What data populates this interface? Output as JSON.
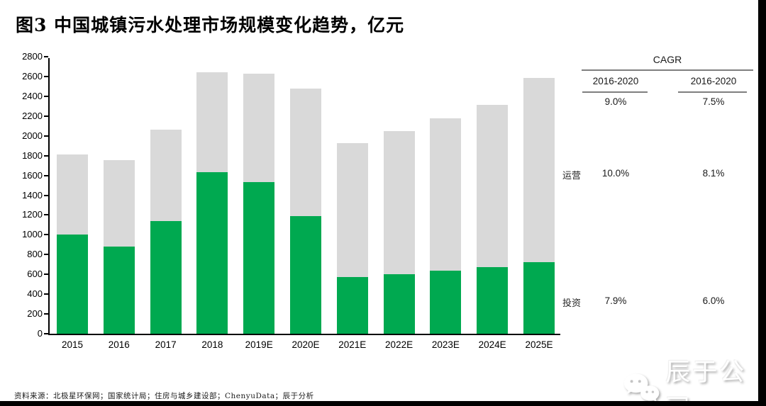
{
  "title": "图3 中国城镇污水处理市场规模变化趋势，亿元",
  "chart_data": {
    "type": "bar",
    "stacked": true,
    "title": "中国城镇污水处理市场规模变化趋势，亿元",
    "xlabel": "",
    "ylabel": "亿元",
    "ylim": [
      0,
      2800
    ],
    "y_ticks": [
      0,
      200,
      400,
      600,
      800,
      1000,
      1200,
      1400,
      1600,
      1800,
      2000,
      2200,
      2400,
      2600,
      2800
    ],
    "grid": false,
    "legend_position": "none",
    "categories": [
      "2015",
      "2016",
      "2017",
      "2018",
      "2019E",
      "2020E",
      "2021E",
      "2022E",
      "2023E",
      "2024E",
      "2025E"
    ],
    "series": [
      {
        "name": "投资",
        "color": "#00A950",
        "values": [
          1000,
          880,
          1140,
          1630,
          1535,
          1190,
          570,
          600,
          640,
          675,
          720
        ]
      },
      {
        "name": "运营",
        "color": "#D9D9D9",
        "values": [
          810,
          875,
          925,
          1010,
          1095,
          1285,
          1360,
          1450,
          1535,
          1635,
          1865
        ]
      }
    ],
    "totals": [
      1810,
      1755,
      2065,
      2640,
      2630,
      2475,
      1930,
      2050,
      2175,
      2310,
      2585
    ]
  },
  "cagr_table": {
    "title": "CAGR",
    "columns": [
      "2016-2020",
      "2016-2020"
    ],
    "total_values": [
      "9.0%",
      "7.5%"
    ],
    "rows": [
      {
        "label": "运营",
        "values": [
          "10.0%",
          "8.1%"
        ]
      },
      {
        "label": "投资",
        "values": [
          "7.9%",
          "6.0%"
        ]
      }
    ]
  },
  "footer": {
    "source": "资料来源：北极星环保网；国家统计局；住房与城乡建设部；ChenyuData；辰于分析"
  },
  "watermark": {
    "text": "辰于公司",
    "icon": "wechat-bubbles-icon"
  }
}
